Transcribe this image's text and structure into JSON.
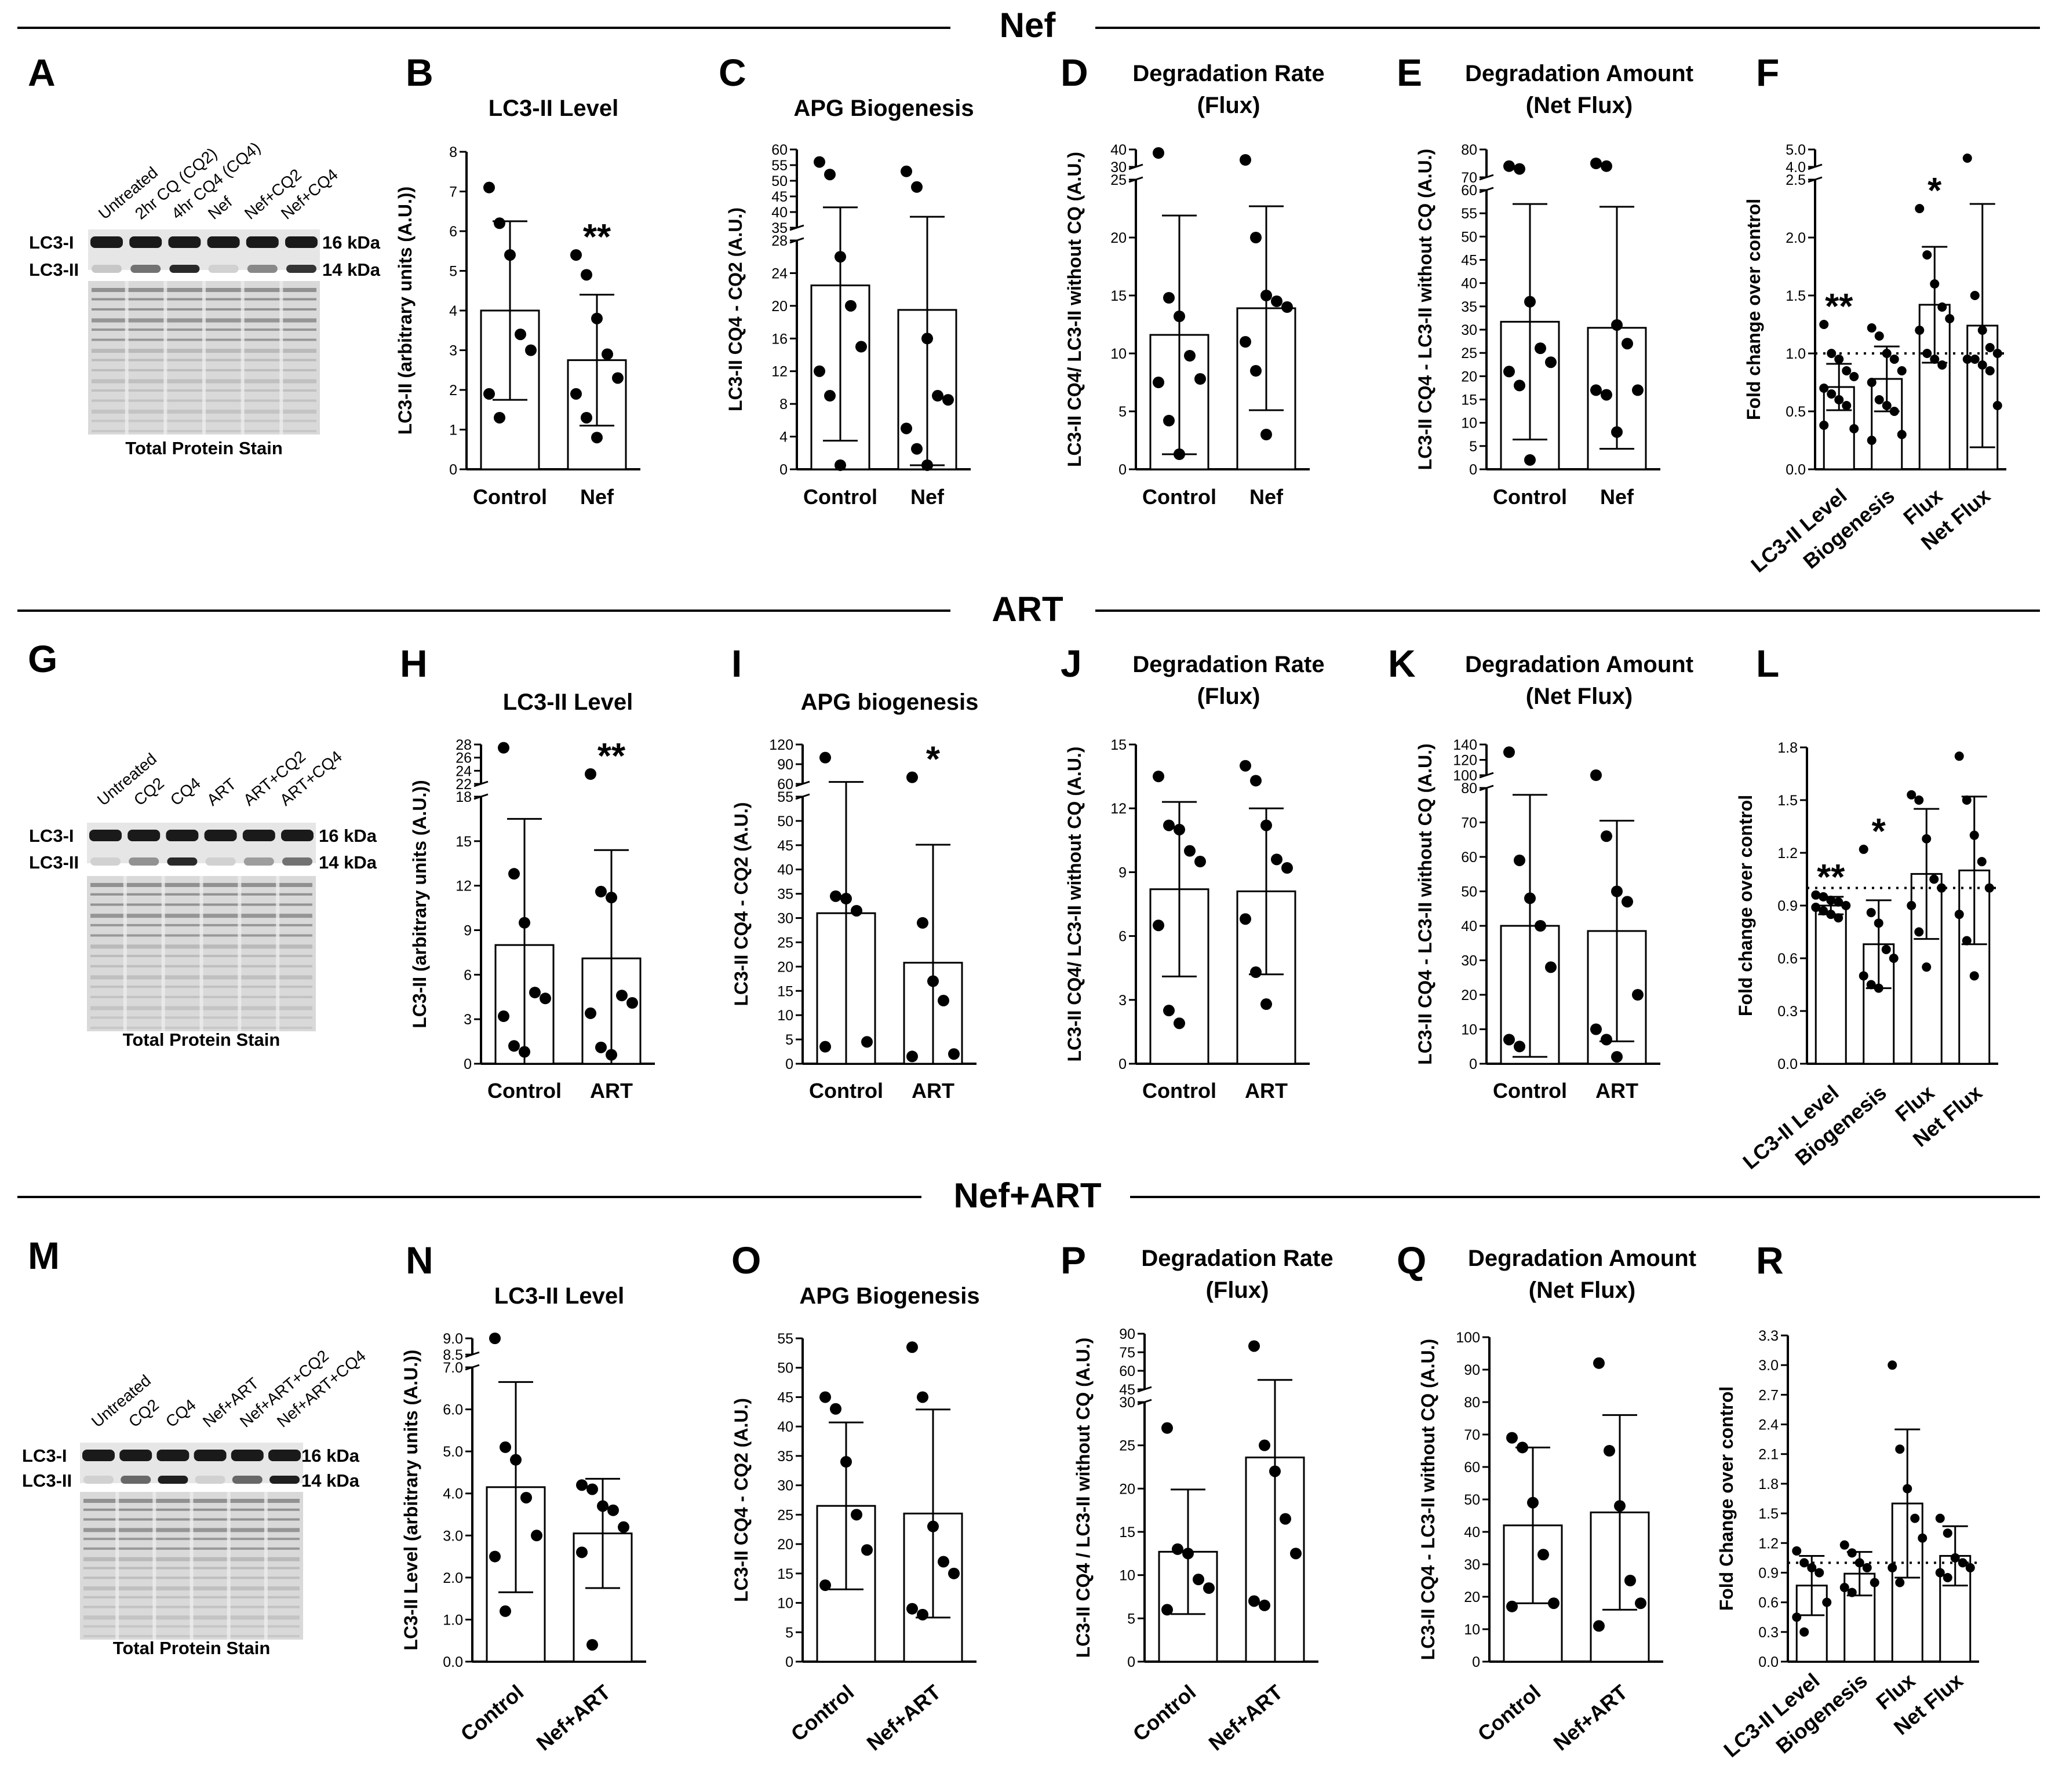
{
  "sections": [
    {
      "title": "Nef"
    },
    {
      "title": "ART"
    },
    {
      "title": "Nef+ART"
    }
  ],
  "blots": [
    {
      "label": "A",
      "lanes": [
        "Untreated",
        "2hr CQ (CQ2)",
        "4hr CQ4 (CQ4)",
        "Nef",
        "Nef+CQ2",
        "Nef+CQ4"
      ],
      "bands": [
        "LC3-I",
        "LC3-II"
      ],
      "sizes": [
        "16 kDa",
        "14 kDa"
      ],
      "caption": "Total Protein Stain",
      "lc3ii_intensity": [
        0.15,
        0.55,
        0.9,
        0.1,
        0.45,
        0.85
      ]
    },
    {
      "label": "G",
      "lanes": [
        "Untreated",
        "CQ2",
        "CQ4",
        "ART",
        "ART+CQ2",
        "ART+CQ4"
      ],
      "bands": [
        "LC3-I",
        "LC3-II"
      ],
      "sizes": [
        "16 kDa",
        "14 kDa"
      ],
      "caption": "Total Protein Stain",
      "lc3ii_intensity": [
        0.1,
        0.4,
        0.9,
        0.1,
        0.35,
        0.55
      ]
    },
    {
      "label": "M",
      "lanes": [
        "Untreated",
        "CQ2",
        "CQ4",
        "Nef+ART",
        "Nef+ART+CQ2",
        "Nef+ART+CQ4"
      ],
      "bands": [
        "LC3-I",
        "LC3-II"
      ],
      "sizes": [
        "16 kDa",
        "14 kDa"
      ],
      "caption": "Total Protein Stain",
      "lc3ii_intensity": [
        0.1,
        0.6,
        0.95,
        0.1,
        0.6,
        0.95
      ]
    }
  ],
  "chart_data": [
    {
      "label": "B",
      "type": "bar",
      "title": "LC3-II Level",
      "ylabel": "LC3-II (arbitrary units (A.U.))",
      "categories": [
        "Control",
        "Nef"
      ],
      "means": [
        4.0,
        2.75
      ],
      "sd": [
        2.25,
        1.65
      ],
      "points": [
        [
          7.1,
          6.2,
          5.4,
          3.4,
          3.0,
          1.9,
          1.3
        ],
        [
          5.4,
          4.9,
          3.8,
          2.9,
          2.3,
          1.9,
          1.3,
          0.8
        ]
      ],
      "yticks": [
        0,
        1,
        2,
        3,
        4,
        5,
        6,
        7,
        8
      ],
      "annotations": [
        "",
        "**"
      ]
    },
    {
      "label": "C",
      "type": "bar",
      "title": "APG Biogenesis",
      "ylabel": "LC3-II CQ4 - CQ2 (A.U.)",
      "categories": [
        "Control",
        "Nef"
      ],
      "means": [
        22.5,
        19.5
      ],
      "sd": [
        19.0,
        19.0
      ],
      "points": [
        [
          56,
          52,
          26,
          20,
          15,
          12,
          9,
          0.5
        ],
        [
          53,
          48,
          16,
          9,
          8.5,
          5,
          2.5,
          0.5
        ]
      ],
      "yticks_lower": [
        0,
        4,
        8,
        12,
        16,
        20,
        24,
        28
      ],
      "yticks_upper": [
        35,
        40,
        45,
        50,
        55,
        60
      ],
      "annotations": [
        "",
        ""
      ]
    },
    {
      "label": "D",
      "type": "bar",
      "title": "Degradation Rate (Flux)",
      "ylabel": "LC3-II CQ4/ LC3-II without CQ (A.U.)",
      "categories": [
        "Control",
        "Nef"
      ],
      "means": [
        11.6,
        13.9
      ],
      "sd": [
        10.3,
        8.8
      ],
      "points": [
        [
          38,
          14.8,
          13.2,
          9.8,
          7.8,
          7.5,
          4.2,
          1.3
        ],
        [
          34,
          20,
          15,
          14.5,
          14,
          11,
          8.5,
          3
        ]
      ],
      "yticks_lower": [
        0,
        5,
        10,
        15,
        20,
        25
      ],
      "yticks_upper": [
        30,
        40
      ],
      "annotations": [
        "",
        ""
      ]
    },
    {
      "label": "E",
      "type": "bar",
      "title": "Degradation Amount (Net Flux)",
      "ylabel": "LC3-II CQ4 - LC3-II without CQ (A.U.)",
      "categories": [
        "Control",
        "Nef"
      ],
      "means": [
        31.7,
        30.4
      ],
      "sd": [
        25.3,
        26.0
      ],
      "points": [
        [
          74,
          73,
          36,
          26,
          23,
          21,
          18,
          2
        ],
        [
          75,
          74,
          31,
          27,
          17,
          17,
          16,
          8
        ]
      ],
      "yticks_lower": [
        0,
        5,
        10,
        15,
        20,
        25,
        30,
        35,
        40,
        45,
        50,
        55,
        60
      ],
      "yticks_upper": [
        70,
        80
      ],
      "annotations": [
        "",
        ""
      ]
    },
    {
      "label": "F",
      "type": "bar",
      "title": "",
      "ylabel": "Fold change over control",
      "categories": [
        "LC3-II Level",
        "Biogenesis",
        "Flux",
        "Net Flux"
      ],
      "means": [
        0.71,
        0.78,
        1.42,
        1.24
      ],
      "sd": [
        0.2,
        0.28,
        0.5,
        1.05
      ],
      "points": [
        [
          1.25,
          1.0,
          0.95,
          0.85,
          0.8,
          0.7,
          0.65,
          0.6,
          0.55,
          0.35,
          0.38
        ],
        [
          1.22,
          1.15,
          1.0,
          0.95,
          0.85,
          0.75,
          0.6,
          0.55,
          0.5,
          0.3,
          0.25
        ],
        [
          2.25,
          1.85,
          1.6,
          1.4,
          1.3,
          1.2,
          1.0,
          0.95,
          0.9
        ],
        [
          4.5,
          1.5,
          1.2,
          1.05,
          1.0,
          0.95,
          0.95,
          0.9,
          0.85,
          0.55
        ]
      ],
      "yticks_lower": [
        0,
        0.5,
        1.0,
        1.5,
        2.0,
        2.5
      ],
      "yticks_upper": [
        4,
        5
      ],
      "reference": 1.0,
      "annotations": [
        "**",
        "",
        "*",
        ""
      ]
    },
    {
      "label": "H",
      "type": "bar",
      "title": "LC3-II Level",
      "ylabel": "LC3-II (arbitrary units (A.U.))",
      "categories": [
        "Control",
        "ART"
      ],
      "means": [
        8.0,
        7.1
      ],
      "sd": [
        8.5,
        7.3
      ],
      "points": [
        [
          27.5,
          12.8,
          9.5,
          4.8,
          4.4,
          3.2,
          1.2,
          0.8
        ],
        [
          23.5,
          11.6,
          11.2,
          4.6,
          4.1,
          3.4,
          1.1,
          0.6
        ]
      ],
      "yticks_lower": [
        0,
        3,
        6,
        9,
        12,
        15,
        18
      ],
      "yticks_upper": [
        22,
        24,
        26,
        28
      ],
      "annotations": [
        "",
        "**"
      ]
    },
    {
      "label": "I",
      "type": "bar",
      "title": "APG biogenesis",
      "ylabel": "LC3-II CQ4 - CQ2 (A.U.)",
      "categories": [
        "Control",
        "ART"
      ],
      "means": [
        31.0,
        20.8
      ],
      "sd": [
        32.0,
        24.3
      ],
      "points": [
        [
          100,
          34.5,
          34,
          31.5,
          4.5,
          3.5
        ],
        [
          70,
          29,
          17,
          13,
          2,
          1.5
        ]
      ],
      "yticks_lower": [
        0,
        5,
        10,
        15,
        20,
        25,
        30,
        35,
        40,
        45,
        50,
        55
      ],
      "yticks_upper": [
        60,
        90,
        120
      ],
      "annotations": [
        "",
        "*"
      ]
    },
    {
      "label": "J",
      "type": "bar",
      "title": "Degradation Rate (Flux)",
      "ylabel": "LC3-II CQ4/ LC3-II without CQ (A.U.)",
      "categories": [
        "Control",
        "ART"
      ],
      "means": [
        8.2,
        8.1
      ],
      "sd": [
        4.1,
        3.9
      ],
      "points": [
        [
          13.5,
          11.2,
          11.0,
          10.0,
          9.5,
          6.5,
          2.5,
          1.9
        ],
        [
          14.0,
          13.3,
          11.2,
          9.6,
          9.2,
          6.8,
          4.3,
          2.8
        ]
      ],
      "yticks": [
        0,
        3,
        6,
        9,
        12,
        15
      ],
      "annotations": [
        "",
        ""
      ]
    },
    {
      "label": "K",
      "type": "bar",
      "title": "Degradation Amount (Net Flux)",
      "ylabel": "LC3-II CQ4 - LC3-II without CQ (A.U.)",
      "categories": [
        "Control",
        "ART"
      ],
      "means": [
        40.0,
        38.5
      ],
      "sd": [
        38.0,
        32.0
      ],
      "points": [
        [
          130,
          59,
          48,
          40,
          28,
          7,
          5
        ],
        [
          100,
          66,
          50,
          47,
          20,
          10,
          7,
          2
        ]
      ],
      "yticks_lower": [
        0,
        10,
        20,
        30,
        40,
        50,
        60,
        70,
        80
      ],
      "yticks_upper": [
        100,
        120,
        140
      ],
      "annotations": [
        "",
        ""
      ]
    },
    {
      "label": "L",
      "type": "bar",
      "title": "",
      "ylabel": "Fold change over control",
      "categories": [
        "LC3-II Level",
        "Biogenesis",
        "Flux",
        "Net Flux"
      ],
      "means": [
        0.9,
        0.68,
        1.08,
        1.1
      ],
      "sd": [
        0.05,
        0.25,
        0.37,
        0.42
      ],
      "points": [
        [
          0.96,
          0.95,
          0.93,
          0.92,
          0.9,
          0.89,
          0.87,
          0.85,
          0.83
        ],
        [
          1.22,
          0.86,
          0.8,
          0.65,
          0.6,
          0.5,
          0.45,
          0.43
        ],
        [
          1.53,
          1.5,
          1.28,
          1.05,
          1.0,
          0.9,
          0.75,
          0.55
        ],
        [
          1.75,
          1.5,
          1.3,
          1.15,
          1.0,
          0.85,
          0.7,
          0.5
        ]
      ],
      "yticks": [
        0,
        0.3,
        0.6,
        0.9,
        1.2,
        1.5,
        1.8
      ],
      "reference": 1.0,
      "annotations": [
        "**",
        "*",
        "",
        ""
      ]
    },
    {
      "label": "N",
      "type": "bar",
      "title": "LC3-II Level",
      "ylabel": "LC3-II Level (arbitrary units (A.U.))",
      "categories": [
        "Control",
        "Nef+ART"
      ],
      "means": [
        4.15,
        3.05
      ],
      "sd": [
        2.5,
        1.3
      ],
      "points": [
        [
          9.0,
          5.1,
          4.8,
          3.9,
          3.0,
          2.5,
          1.2
        ],
        [
          4.2,
          4.1,
          3.7,
          3.6,
          3.2,
          2.6,
          0.4
        ]
      ],
      "yticks_lower": [
        0,
        1,
        2,
        3,
        4,
        5,
        6,
        7
      ],
      "yticks_upper": [
        8.5,
        9.0
      ],
      "annotations": [
        "",
        ""
      ]
    },
    {
      "label": "O",
      "type": "bar",
      "title": "APG Biogenesis",
      "ylabel": "LC3-II CQ4 - CQ2 (A.U.)",
      "categories": [
        "Control",
        "Nef+ART"
      ],
      "means": [
        26.5,
        25.2
      ],
      "sd": [
        14.2,
        17.7
      ],
      "points": [
        [
          45,
          43,
          34,
          25,
          19,
          13
        ],
        [
          53.5,
          45,
          23,
          17,
          15,
          9,
          8
        ]
      ],
      "yticks": [
        0,
        5,
        10,
        15,
        20,
        25,
        30,
        35,
        40,
        45,
        50,
        55
      ],
      "annotations": [
        "",
        ""
      ]
    },
    {
      "label": "P",
      "type": "bar",
      "title": "Degradation Rate (Flux)",
      "ylabel": "LC3-II CQ4 / LC3-II without CQ (A.U.)",
      "categories": [
        "Control",
        "Nef+ART"
      ],
      "means": [
        12.7,
        23.6
      ],
      "sd": [
        7.2,
        29.0
      ],
      "points": [
        [
          27,
          13,
          12.5,
          9.5,
          8.5,
          6
        ],
        [
          80,
          25,
          22,
          16.5,
          12.5,
          7,
          6.5
        ]
      ],
      "yticks_lower": [
        0,
        5,
        10,
        15,
        20,
        25,
        30
      ],
      "yticks_upper": [
        45,
        60,
        75,
        90
      ],
      "annotations": [
        "",
        ""
      ]
    },
    {
      "label": "Q",
      "type": "bar",
      "title": "Degradation Amount (Net Flux)",
      "ylabel": "LC3-II CQ4 - LC3-II without CQ (A.U.)",
      "categories": [
        "Control",
        "Nef+ART"
      ],
      "means": [
        42.0,
        46.0
      ],
      "sd": [
        24.0,
        30.0
      ],
      "points": [
        [
          69,
          66,
          49,
          33,
          18,
          17
        ],
        [
          92,
          65,
          48,
          25,
          18,
          11
        ]
      ],
      "yticks": [
        0,
        10,
        20,
        30,
        40,
        50,
        60,
        70,
        80,
        90,
        100
      ],
      "annotations": [
        "",
        ""
      ]
    },
    {
      "label": "R",
      "type": "bar",
      "title": "",
      "ylabel": "Fold Change over control",
      "categories": [
        "LC3-II Level",
        "Biogenesis",
        "Flux",
        "Net Flux"
      ],
      "means": [
        0.77,
        0.89,
        1.6,
        1.07
      ],
      "sd": [
        0.3,
        0.22,
        0.75,
        0.3
      ],
      "points": [
        [
          1.12,
          1.0,
          0.95,
          0.9,
          0.6,
          0.45,
          0.3
        ],
        [
          1.18,
          1.1,
          1.0,
          0.95,
          0.8,
          0.75,
          0.7
        ],
        [
          3.0,
          2.15,
          1.75,
          1.45,
          1.25,
          0.95,
          0.8
        ],
        [
          1.45,
          1.3,
          1.05,
          1.0,
          0.95,
          0.9,
          0.85
        ]
      ],
      "yticks": [
        0,
        0.3,
        0.6,
        0.9,
        1.2,
        1.5,
        1.8,
        2.1,
        2.4,
        2.7,
        3.0,
        3.3
      ],
      "reference": 1.0,
      "annotations": [
        "",
        "",
        "",
        ""
      ]
    }
  ]
}
